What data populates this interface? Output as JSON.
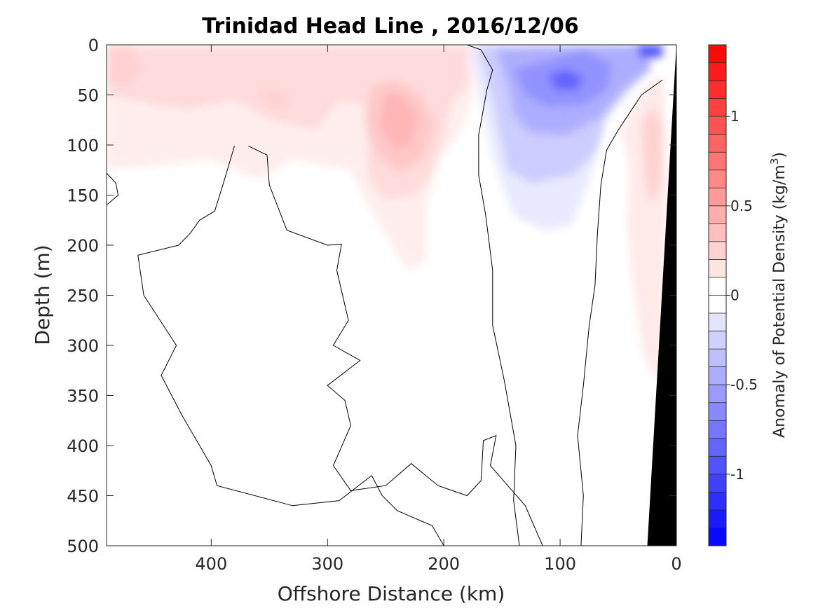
{
  "chart_data": {
    "type": "heatmap",
    "title": "Trinidad Head Line , 2016/12/06",
    "xlabel": "Offshore Distance (km)",
    "ylabel": "Depth (m)",
    "colorbar_label_prefix": "Anomaly of Potential Density (kg/m",
    "colorbar_label_exp": "3",
    "colorbar_label_suffix": ")",
    "xlim": [
      490,
      0
    ],
    "ylim": [
      0,
      500
    ],
    "y_reversed": true,
    "x_reversed": true,
    "x_ticks": [
      400,
      300,
      200,
      100,
      0
    ],
    "x_tick_labels": [
      "400",
      "300",
      "200",
      "100",
      "0"
    ],
    "y_ticks": [
      0,
      50,
      100,
      150,
      200,
      250,
      300,
      350,
      400,
      450,
      500
    ],
    "y_tick_labels": [
      "0",
      "50",
      "100",
      "150",
      "200",
      "250",
      "300",
      "350",
      "400",
      "450",
      "500"
    ],
    "colorbar": {
      "clim": [
        -1.4,
        1.4
      ],
      "step": 0.1,
      "ticks": [
        1,
        0.5,
        0,
        -0.5,
        -1
      ],
      "tick_labels": [
        "1",
        "0.5",
        "0",
        "-0.5",
        "-1"
      ],
      "neg_color": "#0000ff",
      "zero_color": "#ffffff",
      "pos_color": "#ff0000"
    },
    "anomaly_features": [
      {
        "name": "near-surface positive layer",
        "x": [
          490,
          180
        ],
        "depth": [
          0,
          120
        ],
        "value": 0.15
      },
      {
        "name": "positive core",
        "x": 240,
        "depth": 75,
        "value": 0.35
      },
      {
        "name": "positive tongue",
        "x": [
          270,
          200
        ],
        "depth": [
          60,
          230
        ],
        "value": 0.12
      },
      {
        "name": "negative core",
        "x": 95,
        "depth": 35,
        "value": -0.65
      },
      {
        "name": "negative surface max",
        "x": 15,
        "depth": 5,
        "value": -1.05
      },
      {
        "name": "negative lens",
        "x": [
          170,
          40
        ],
        "depth": [
          0,
          185
        ],
        "value": -0.3
      },
      {
        "name": "nearshore positive band",
        "x": [
          45,
          10
        ],
        "depth": [
          30,
          330
        ],
        "value": 0.2
      }
    ],
    "bathymetry": {
      "color": "#000000",
      "x": [
        25,
        0
      ],
      "depth": [
        500,
        0
      ]
    },
    "zero_contour_color": "#000000"
  }
}
